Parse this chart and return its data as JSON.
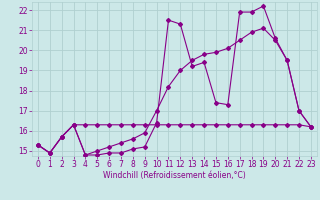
{
  "xlabel": "Windchill (Refroidissement éolien,°C)",
  "background_color": "#cce8e8",
  "grid_color": "#b0d0d0",
  "line_color": "#880088",
  "xlim": [
    -0.5,
    23.5
  ],
  "ylim": [
    14.75,
    22.4
  ],
  "xticks": [
    0,
    1,
    2,
    3,
    4,
    5,
    6,
    7,
    8,
    9,
    10,
    11,
    12,
    13,
    14,
    15,
    16,
    17,
    18,
    19,
    20,
    21,
    22,
    23
  ],
  "yticks": [
    15,
    16,
    17,
    18,
    19,
    20,
    21,
    22
  ],
  "line1_x": [
    0,
    1,
    2,
    3,
    4,
    5,
    6,
    7,
    8,
    9,
    10,
    11,
    12,
    13,
    14,
    15,
    16,
    17,
    18,
    19,
    20,
    21,
    22,
    23
  ],
  "line1_y": [
    15.3,
    14.9,
    15.7,
    16.3,
    14.8,
    14.8,
    14.9,
    14.9,
    15.1,
    15.2,
    16.4,
    21.5,
    21.3,
    19.2,
    19.4,
    17.4,
    17.3,
    21.9,
    21.9,
    22.2,
    20.6,
    19.5,
    17.0,
    16.2
  ],
  "line2_x": [
    0,
    1,
    2,
    3,
    4,
    5,
    6,
    7,
    8,
    9,
    10,
    11,
    12,
    13,
    14,
    15,
    16,
    17,
    18,
    19,
    20,
    21,
    22,
    23
  ],
  "line2_y": [
    15.3,
    14.9,
    15.7,
    16.3,
    16.3,
    16.3,
    16.3,
    16.3,
    16.3,
    16.3,
    16.3,
    16.3,
    16.3,
    16.3,
    16.3,
    16.3,
    16.3,
    16.3,
    16.3,
    16.3,
    16.3,
    16.3,
    16.3,
    16.2
  ],
  "line3_x": [
    0,
    1,
    2,
    3,
    4,
    5,
    6,
    7,
    8,
    9,
    10,
    11,
    12,
    13,
    14,
    15,
    16,
    17,
    18,
    19,
    20,
    21,
    22,
    23
  ],
  "line3_y": [
    15.3,
    14.9,
    15.7,
    16.3,
    14.8,
    15.0,
    15.2,
    15.4,
    15.6,
    15.9,
    17.0,
    18.2,
    19.0,
    19.5,
    19.8,
    19.9,
    20.1,
    20.5,
    20.9,
    21.1,
    20.5,
    19.5,
    17.0,
    16.2
  ],
  "marker": "D",
  "markersize": 2.0,
  "linewidth": 0.8,
  "tick_fontsize": 5.5,
  "xlabel_fontsize": 5.5
}
